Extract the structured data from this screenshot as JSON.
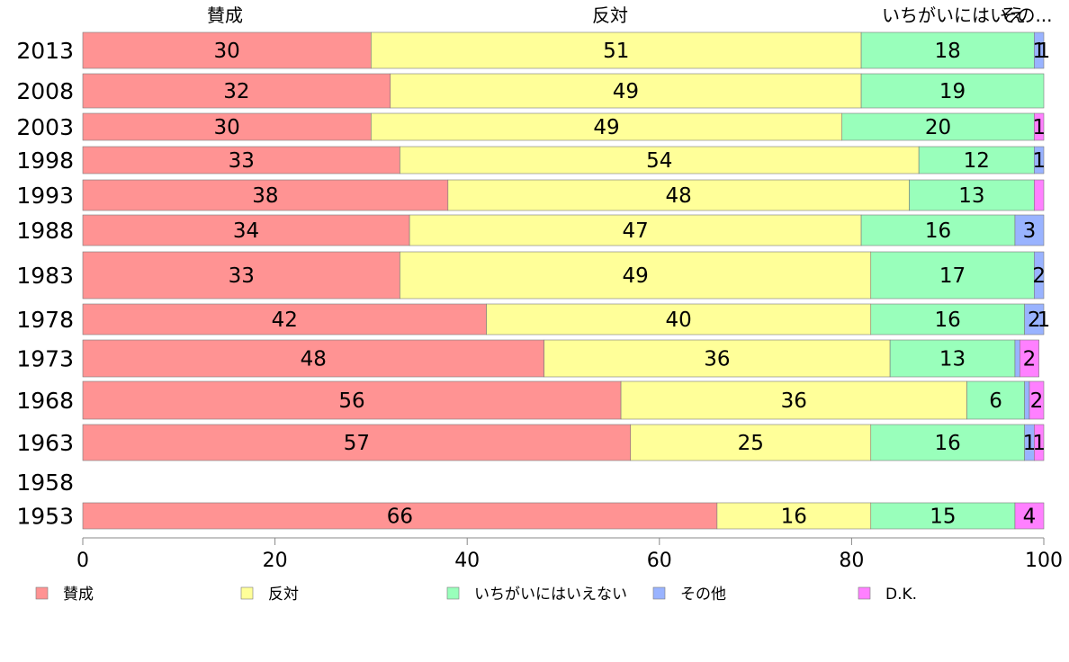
{
  "chart_data": {
    "type": "bar",
    "orientation": "horizontal",
    "stacked": true,
    "categories": [
      "2013",
      "2008",
      "2003",
      "1998",
      "1993",
      "1988",
      "1983",
      "1978",
      "1973",
      "1968",
      "1963",
      "1958",
      "1953"
    ],
    "series": [
      {
        "name": "賛成",
        "color": "#ff9393",
        "values": [
          30,
          32,
          30,
          33,
          38,
          34,
          33,
          42,
          48,
          56,
          57,
          null,
          66
        ],
        "labels": [
          "30",
          "32",
          "30",
          "33",
          "38",
          "34",
          "33",
          "42",
          "48",
          "56",
          "57",
          "",
          "66"
        ]
      },
      {
        "name": "反対",
        "color": "#ffff99",
        "values": [
          51,
          49,
          49,
          54,
          48,
          47,
          49,
          40,
          36,
          36,
          25,
          null,
          16
        ],
        "labels": [
          "51",
          "49",
          "49",
          "54",
          "48",
          "47",
          "49",
          "40",
          "36",
          "36",
          "25",
          "",
          "16"
        ]
      },
      {
        "name": "いちがいにはいえない",
        "color": "#99ffbb",
        "values": [
          18,
          19,
          20,
          12,
          13,
          16,
          17,
          16,
          13,
          6,
          16,
          null,
          15
        ],
        "labels": [
          "18",
          "19",
          "20",
          "12",
          "13",
          "16",
          "17",
          "16",
          "13",
          "6",
          "16",
          "",
          "15"
        ]
      },
      {
        "name": "その他",
        "color": "#99b3ff",
        "values": [
          1,
          0,
          0,
          1,
          0,
          3,
          2,
          2,
          0.5,
          0.5,
          1,
          null,
          0
        ],
        "labels": [
          "1",
          "",
          "",
          "1",
          "",
          "3",
          "2",
          "2",
          "",
          "",
          "1",
          "",
          ""
        ]
      },
      {
        "name": "D.K.",
        "color": "#ff80ff",
        "values": [
          1,
          0,
          1,
          0,
          1,
          0,
          0,
          1,
          2,
          2,
          1,
          null,
          4
        ],
        "labels": [
          "1",
          "",
          "1",
          "",
          "",
          "",
          "",
          "1",
          "2",
          "2",
          "1",
          "",
          "4"
        ]
      }
    ],
    "xlim": [
      0,
      100
    ],
    "xticks": [
      "0",
      "20",
      "40",
      "60",
      "80",
      "100"
    ],
    "top_labels": [
      "賛成",
      "反対",
      "いちがいにはいえ",
      "その..."
    ],
    "legend": {
      "position": "bottom",
      "items": [
        "賛成",
        "反対",
        "いちがいにはいえない",
        "その他",
        "D.K."
      ]
    }
  }
}
